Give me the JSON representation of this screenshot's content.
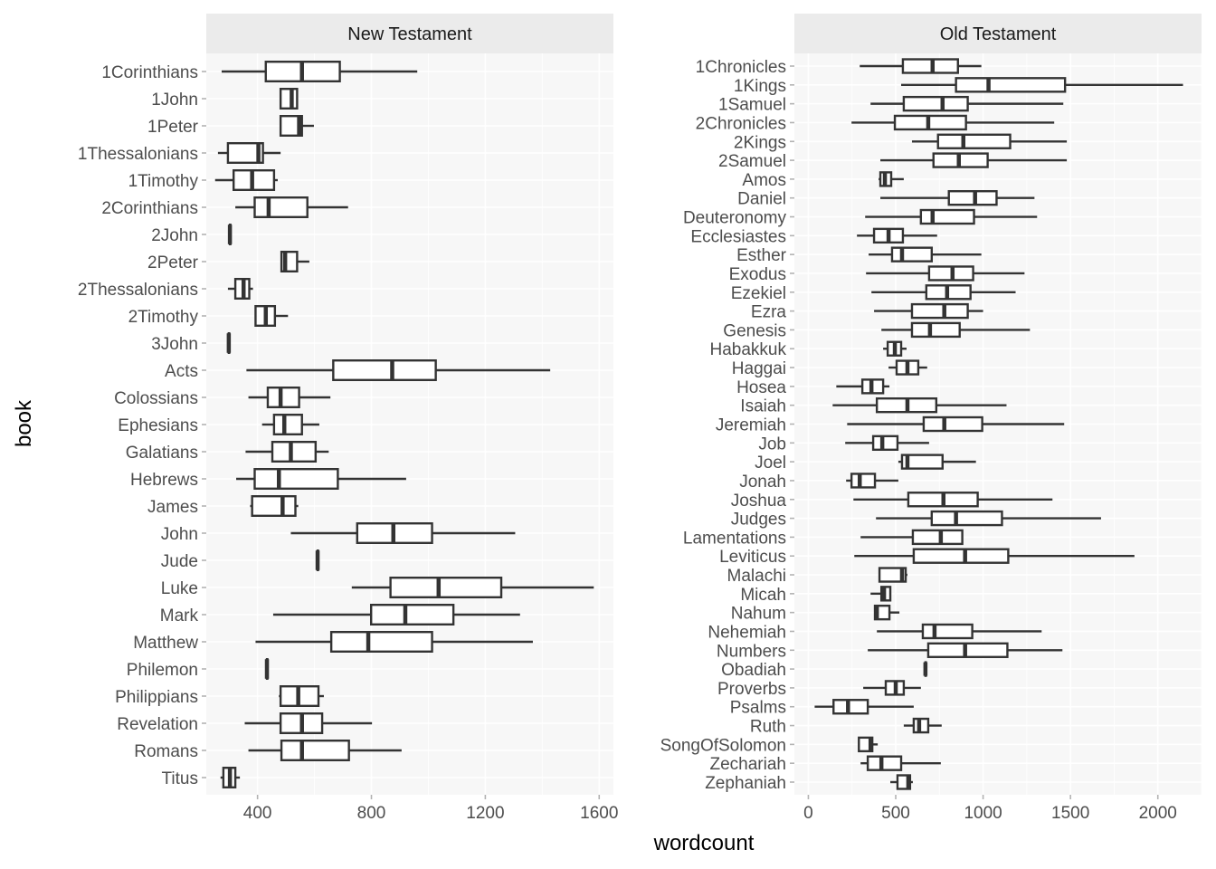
{
  "chart_data": {
    "type": "boxplot",
    "orientation": "horizontal",
    "xlabel": "wordcount",
    "ylabel": "book",
    "grid": true,
    "legend": "none",
    "panels": [
      {
        "title": "New Testament",
        "xlim": [
          220,
          1650
        ],
        "xticks": [
          400,
          800,
          1200,
          1600
        ],
        "books": [
          {
            "name": "1Corinthians",
            "min": 274,
            "q1": 429,
            "median": 556,
            "q3": 689,
            "max": 961
          },
          {
            "name": "1John",
            "min": 481,
            "q1": 481,
            "median": 520,
            "q3": 539,
            "max": 539
          },
          {
            "name": "1Peter",
            "min": 481,
            "q1": 481,
            "median": 546,
            "q3": 556,
            "max": 598
          },
          {
            "name": "1Thessalonians",
            "min": 261,
            "q1": 296,
            "median": 403,
            "q3": 419,
            "max": 481
          },
          {
            "name": "1Timothy",
            "min": 251,
            "q1": 316,
            "median": 381,
            "q3": 458,
            "max": 471
          },
          {
            "name": "2Corinthians",
            "min": 322,
            "q1": 390,
            "median": 439,
            "q3": 575,
            "max": 718
          },
          {
            "name": "2John",
            "min": 303,
            "q1": 303,
            "median": 303,
            "q3": 303,
            "max": 303
          },
          {
            "name": "2Peter",
            "min": 484,
            "q1": 484,
            "median": 497,
            "q3": 539,
            "max": 582
          },
          {
            "name": "2Thessalonians",
            "min": 296,
            "q1": 322,
            "median": 351,
            "q3": 371,
            "max": 384
          },
          {
            "name": "2Timothy",
            "min": 393,
            "q1": 393,
            "median": 429,
            "q3": 461,
            "max": 507
          },
          {
            "name": "3John",
            "min": 299,
            "q1": 299,
            "median": 299,
            "q3": 299,
            "max": 299
          },
          {
            "name": "Acts",
            "min": 361,
            "q1": 666,
            "median": 873,
            "q3": 1026,
            "max": 1428
          },
          {
            "name": "Colossians",
            "min": 368,
            "q1": 436,
            "median": 481,
            "q3": 546,
            "max": 656
          },
          {
            "name": "Ephesians",
            "min": 416,
            "q1": 458,
            "median": 494,
            "q3": 556,
            "max": 617
          },
          {
            "name": "Galatians",
            "min": 358,
            "q1": 452,
            "median": 517,
            "q3": 604,
            "max": 650
          },
          {
            "name": "Hebrews",
            "min": 325,
            "q1": 390,
            "median": 475,
            "q3": 682,
            "max": 922
          },
          {
            "name": "James",
            "min": 374,
            "q1": 381,
            "median": 488,
            "q3": 533,
            "max": 543
          },
          {
            "name": "John",
            "min": 517,
            "q1": 750,
            "median": 877,
            "q3": 1013,
            "max": 1305
          },
          {
            "name": "Jude",
            "min": 611,
            "q1": 611,
            "median": 611,
            "q3": 611,
            "max": 611
          },
          {
            "name": "Luke",
            "min": 731,
            "q1": 867,
            "median": 1036,
            "q3": 1256,
            "max": 1581
          },
          {
            "name": "Mark",
            "min": 455,
            "q1": 799,
            "median": 919,
            "q3": 1088,
            "max": 1322
          },
          {
            "name": "Matthew",
            "min": 393,
            "q1": 659,
            "median": 789,
            "q3": 1013,
            "max": 1367
          },
          {
            "name": "Philemon",
            "min": 433,
            "q1": 433,
            "median": 433,
            "q3": 433,
            "max": 433
          },
          {
            "name": "Philippians",
            "min": 475,
            "q1": 481,
            "median": 543,
            "q3": 614,
            "max": 633
          },
          {
            "name": "Revelation",
            "min": 355,
            "q1": 481,
            "median": 556,
            "q3": 627,
            "max": 802
          },
          {
            "name": "Romans",
            "min": 368,
            "q1": 484,
            "median": 556,
            "q3": 721,
            "max": 906
          },
          {
            "name": "Titus",
            "min": 270,
            "q1": 280,
            "median": 303,
            "q3": 322,
            "max": 338
          }
        ]
      },
      {
        "title": "Old Testament",
        "xlim": [
          -80,
          2250
        ],
        "xticks": [
          0,
          500,
          1000,
          1500,
          2000
        ],
        "books": [
          {
            "name": "1Chronicles",
            "min": 294,
            "q1": 541,
            "median": 711,
            "q3": 856,
            "max": 990
          },
          {
            "name": "1Kings",
            "min": 531,
            "q1": 845,
            "median": 1031,
            "q3": 1469,
            "max": 2144
          },
          {
            "name": "1Samuel",
            "min": 356,
            "q1": 546,
            "median": 768,
            "q3": 912,
            "max": 1459
          },
          {
            "name": "2Chronicles",
            "min": 247,
            "q1": 495,
            "median": 686,
            "q3": 902,
            "max": 1407
          },
          {
            "name": "2Kings",
            "min": 593,
            "q1": 742,
            "median": 887,
            "q3": 1155,
            "max": 1479
          },
          {
            "name": "2Samuel",
            "min": 412,
            "q1": 716,
            "median": 861,
            "q3": 1026,
            "max": 1479
          },
          {
            "name": "Amos",
            "min": 402,
            "q1": 412,
            "median": 438,
            "q3": 474,
            "max": 546
          },
          {
            "name": "Daniel",
            "min": 412,
            "q1": 804,
            "median": 954,
            "q3": 1077,
            "max": 1294
          },
          {
            "name": "Deuteronomy",
            "min": 325,
            "q1": 644,
            "median": 711,
            "q3": 948,
            "max": 1309
          },
          {
            "name": "Ecclesiastes",
            "min": 278,
            "q1": 376,
            "median": 459,
            "q3": 541,
            "max": 737
          },
          {
            "name": "Esther",
            "min": 345,
            "q1": 479,
            "median": 536,
            "q3": 706,
            "max": 990
          },
          {
            "name": "Exodus",
            "min": 330,
            "q1": 691,
            "median": 825,
            "q3": 943,
            "max": 1237
          },
          {
            "name": "Ezekiel",
            "min": 361,
            "q1": 675,
            "median": 794,
            "q3": 928,
            "max": 1186
          },
          {
            "name": "Ezra",
            "min": 376,
            "q1": 593,
            "median": 778,
            "q3": 912,
            "max": 1000
          },
          {
            "name": "Genesis",
            "min": 418,
            "q1": 593,
            "median": 696,
            "q3": 866,
            "max": 1268
          },
          {
            "name": "Habakkuk",
            "min": 428,
            "q1": 454,
            "median": 495,
            "q3": 531,
            "max": 562
          },
          {
            "name": "Haggai",
            "min": 459,
            "q1": 505,
            "median": 567,
            "q3": 629,
            "max": 680
          },
          {
            "name": "Hosea",
            "min": 160,
            "q1": 309,
            "median": 361,
            "q3": 428,
            "max": 464
          },
          {
            "name": "Isaiah",
            "min": 139,
            "q1": 392,
            "median": 567,
            "q3": 732,
            "max": 1134
          },
          {
            "name": "Jeremiah",
            "min": 222,
            "q1": 660,
            "median": 778,
            "q3": 995,
            "max": 1464
          },
          {
            "name": "Job",
            "min": 211,
            "q1": 371,
            "median": 423,
            "q3": 510,
            "max": 691
          },
          {
            "name": "Joel",
            "min": 515,
            "q1": 536,
            "median": 567,
            "q3": 768,
            "max": 959
          },
          {
            "name": "Jonah",
            "min": 216,
            "q1": 247,
            "median": 294,
            "q3": 381,
            "max": 515
          },
          {
            "name": "Joshua",
            "min": 258,
            "q1": 572,
            "median": 773,
            "q3": 969,
            "max": 1397
          },
          {
            "name": "Judges",
            "min": 387,
            "q1": 706,
            "median": 845,
            "q3": 1108,
            "max": 1675
          },
          {
            "name": "Lamentations",
            "min": 299,
            "q1": 598,
            "median": 758,
            "q3": 881,
            "max": 881
          },
          {
            "name": "Leviticus",
            "min": 263,
            "q1": 603,
            "median": 897,
            "q3": 1144,
            "max": 1866
          },
          {
            "name": "Malachi",
            "min": 407,
            "q1": 407,
            "median": 536,
            "q3": 557,
            "max": 567
          },
          {
            "name": "Micah",
            "min": 356,
            "q1": 418,
            "median": 433,
            "q3": 469,
            "max": 474
          },
          {
            "name": "Nahum",
            "min": 376,
            "q1": 381,
            "median": 392,
            "q3": 464,
            "max": 521
          },
          {
            "name": "Nehemiah",
            "min": 392,
            "q1": 655,
            "median": 722,
            "q3": 938,
            "max": 1335
          },
          {
            "name": "Numbers",
            "min": 340,
            "q1": 686,
            "median": 897,
            "q3": 1139,
            "max": 1454
          },
          {
            "name": "Obadiah",
            "min": 670,
            "q1": 670,
            "median": 670,
            "q3": 670,
            "max": 670
          },
          {
            "name": "Proverbs",
            "min": 314,
            "q1": 443,
            "median": 500,
            "q3": 546,
            "max": 644
          },
          {
            "name": "Psalms",
            "min": 36,
            "q1": 144,
            "median": 227,
            "q3": 340,
            "max": 603
          },
          {
            "name": "Ruth",
            "min": 546,
            "q1": 603,
            "median": 634,
            "q3": 686,
            "max": 763
          },
          {
            "name": "SongOfSolomon",
            "min": 289,
            "q1": 289,
            "median": 356,
            "q3": 366,
            "max": 397
          },
          {
            "name": "Zechariah",
            "min": 299,
            "q1": 340,
            "median": 418,
            "q3": 531,
            "max": 758
          },
          {
            "name": "Zephaniah",
            "min": 469,
            "q1": 510,
            "median": 572,
            "q3": 582,
            "max": 598
          }
        ]
      }
    ]
  }
}
